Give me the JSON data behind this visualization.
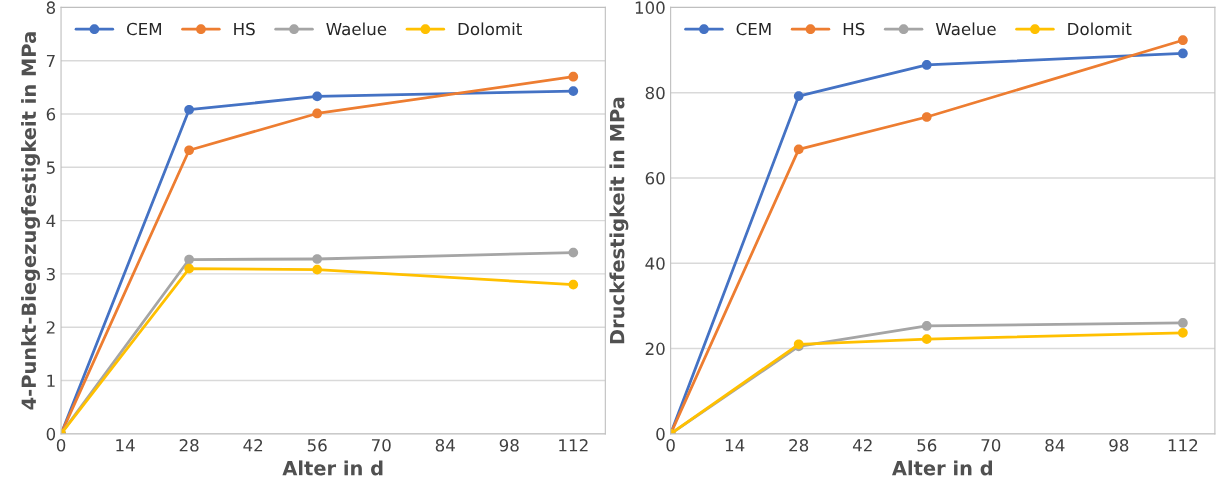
{
  "chart_data": [
    {
      "type": "line",
      "xlabel": "Alter in d",
      "ylabel": "4-Punkt-Biegezugfestigkeit in MPa",
      "x": [
        0,
        28,
        56,
        112
      ],
      "series": [
        {
          "name": "CEM",
          "color": "#4472c4",
          "values": [
            0,
            6.08,
            6.33,
            6.43
          ]
        },
        {
          "name": "HS",
          "color": "#ed7d31",
          "values": [
            0,
            5.32,
            6.01,
            6.7
          ]
        },
        {
          "name": "Waelue",
          "color": "#a5a5a5",
          "values": [
            0,
            3.27,
            3.28,
            3.4
          ]
        },
        {
          "name": "Dolomit",
          "color": "#ffc000",
          "values": [
            0,
            3.1,
            3.08,
            2.8
          ]
        }
      ],
      "xlim": [
        0,
        119
      ],
      "xticks": [
        0,
        14,
        28,
        42,
        56,
        70,
        84,
        98,
        112
      ],
      "ylim": [
        0,
        8
      ],
      "yticks": [
        0,
        1,
        2,
        3,
        4,
        5,
        6,
        7,
        8
      ],
      "grid": "y",
      "legend": "top left",
      "marker": "circle",
      "line_style": "solid"
    },
    {
      "type": "line",
      "xlabel": "Alter in d",
      "ylabel": "Druckfestigkeit in MPa",
      "x": [
        0,
        28,
        56,
        112
      ],
      "series": [
        {
          "name": "CEM",
          "color": "#4472c4",
          "values": [
            0,
            79.2,
            86.5,
            89.2
          ]
        },
        {
          "name": "HS",
          "color": "#ed7d31",
          "values": [
            0,
            66.7,
            74.3,
            92.3
          ]
        },
        {
          "name": "Waelue",
          "color": "#a5a5a5",
          "values": [
            0,
            20.5,
            25.3,
            26.0
          ]
        },
        {
          "name": "Dolomit",
          "color": "#ffc000",
          "values": [
            0,
            21.0,
            22.2,
            23.7
          ]
        }
      ],
      "xlim": [
        0,
        119
      ],
      "xticks": [
        0,
        14,
        28,
        42,
        56,
        70,
        84,
        98,
        112
      ],
      "ylim": [
        0,
        100
      ],
      "yticks": [
        0,
        20,
        40,
        60,
        80,
        100
      ],
      "grid": "y",
      "legend": "top left",
      "marker": "circle",
      "line_style": "solid"
    }
  ]
}
